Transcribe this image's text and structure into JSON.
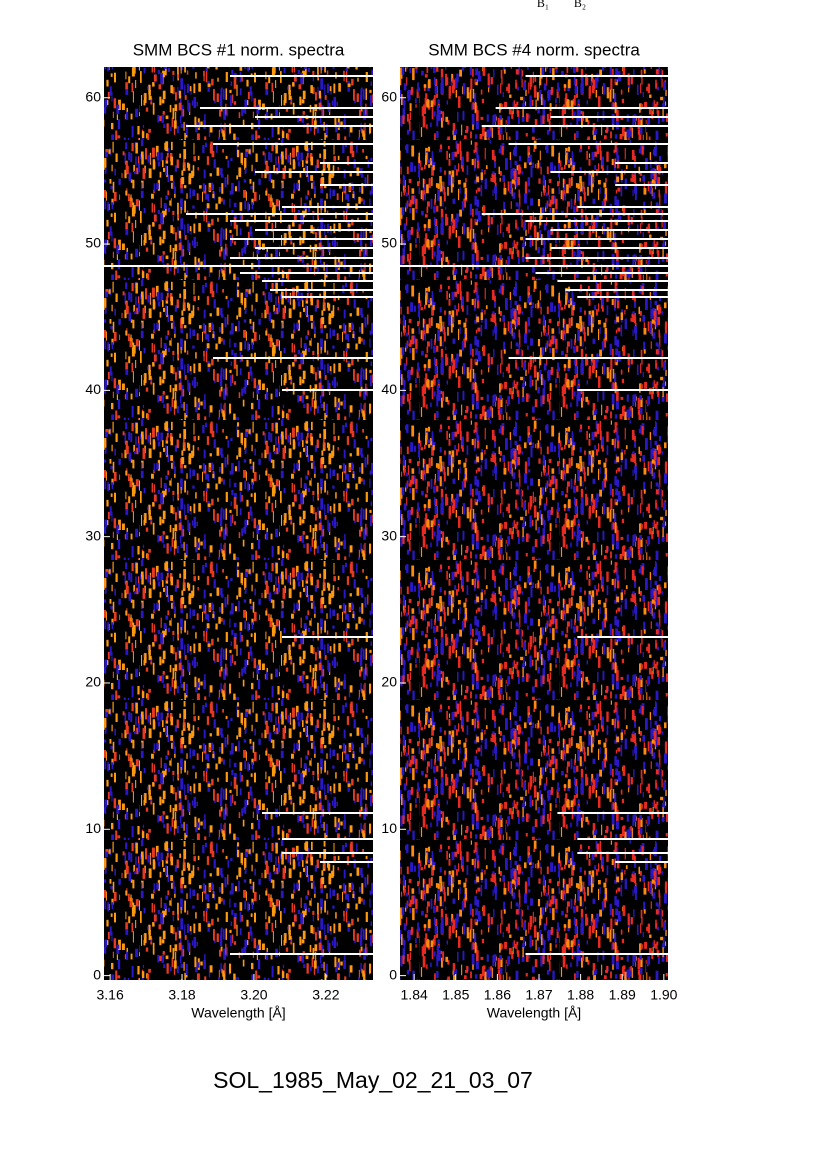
{
  "top_labels": [
    "B₁",
    "B₂"
  ],
  "footer": "SOL_1985_May_02_21_03_07",
  "chart_data": [
    {
      "type": "heatmap",
      "title": "SMM BCS #1 norm. spectra",
      "xlabel": "Wavelength [Å]",
      "xlim": [
        3.1583,
        3.2331
      ],
      "xticks": [
        3.16,
        3.18,
        {
          "value": 3.2,
          "label": "3.20"
        },
        3.22
      ],
      "ylim": [
        -0.3,
        62.1
      ],
      "yticks": [
        0,
        10,
        20,
        30,
        40,
        50,
        60
      ]
    },
    {
      "type": "heatmap",
      "title": "SMM BCS #4 norm. spectra",
      "xlabel": "Wavelength [Å]",
      "xlim": [
        1.8366,
        1.901
      ],
      "xticks": [
        1.84,
        1.85,
        1.86,
        1.87,
        1.88,
        1.89,
        {
          "value": 1.9,
          "label": "1.90"
        }
      ],
      "ylim": [
        -0.3,
        62.1
      ],
      "yticks": [
        0,
        10,
        20,
        30,
        40,
        50,
        60
      ]
    }
  ]
}
